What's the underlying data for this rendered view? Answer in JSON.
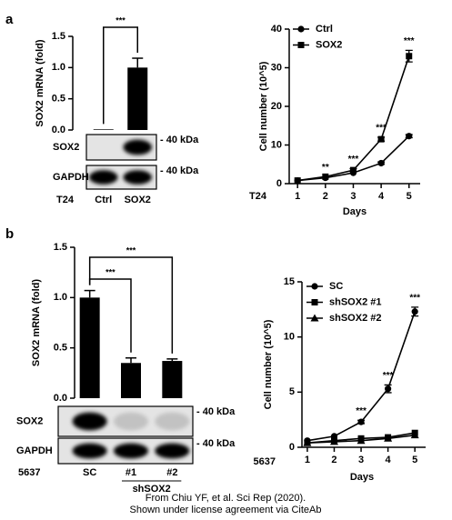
{
  "panels": [
    "a",
    "b"
  ],
  "chart_data": [
    {
      "type": "bar",
      "y_label": "SOX2 mRNA (fold)",
      "cell_line": "T24",
      "categories": [
        "Ctrl",
        "SOX2"
      ],
      "values": [
        0.01,
        1.0
      ],
      "errors": [
        null,
        0.15
      ],
      "color": "#000000",
      "ylim": [
        0,
        1.5
      ],
      "yticks": [
        {
          "value": 0,
          "label": "0.0"
        },
        0.5,
        {
          "value": 1,
          "label": "1.0"
        },
        1.5
      ],
      "annotations": [
        {
          "text": "***",
          "between": [
            "Ctrl",
            "SOX2"
          ]
        }
      ]
    },
    {
      "type": "line",
      "y_label": "Cell number (10^5)",
      "x_label": "Days",
      "cell_line": "T24",
      "x": [
        1,
        2,
        3,
        4,
        5
      ],
      "xlim": [
        0.7,
        5.4
      ],
      "xticks": [
        1,
        2,
        3,
        4,
        5
      ],
      "ylim": [
        0,
        40
      ],
      "yticks": [
        0,
        10,
        20,
        30,
        40
      ],
      "legend": "upper-left",
      "series": [
        {
          "name": "Ctrl",
          "color": "#000000",
          "marker": "circle",
          "values": [
            0.8,
            1.5,
            2.8,
            5.3,
            12.3
          ],
          "errors": [
            null,
            null,
            null,
            0.3,
            0.4
          ]
        },
        {
          "name": "SOX2",
          "color": "#000000",
          "marker": "square",
          "values": [
            0.8,
            1.8,
            3.5,
            11.5,
            33
          ],
          "errors": [
            null,
            null,
            0.4,
            0.5,
            1.5
          ]
        }
      ],
      "annotations": [
        {
          "text": "**",
          "x": 2
        },
        {
          "text": "***",
          "x": 3
        },
        {
          "text": "***",
          "x": 4
        },
        {
          "text": "***",
          "x": 5
        }
      ]
    },
    {
      "type": "bar",
      "y_label": "SOX2 mRNA (fold)",
      "cell_line": "5637",
      "group_label": "shSOX2",
      "categories": [
        "SC",
        "#1",
        "#2"
      ],
      "values": [
        1.0,
        0.35,
        0.37
      ],
      "errors": [
        0.07,
        0.05,
        0.02
      ],
      "color": "#000000",
      "ylim": [
        0,
        1.5
      ],
      "yticks": [
        {
          "value": 0,
          "label": "0.0"
        },
        0.5,
        {
          "value": 1,
          "label": "1.0"
        },
        1.5
      ],
      "annotations": [
        {
          "text": "***",
          "between": [
            "SC",
            "#1"
          ]
        },
        {
          "text": "***",
          "between": [
            "SC",
            "#2"
          ]
        }
      ]
    },
    {
      "type": "line",
      "y_label": "Cell number (10^5)",
      "x_label": "Days",
      "cell_line": "5637",
      "x": [
        1,
        2,
        3,
        4,
        5
      ],
      "xlim": [
        0.8,
        5.4
      ],
      "xticks": [
        1,
        2,
        3,
        4,
        5
      ],
      "ylim": [
        0,
        15
      ],
      "yticks": [
        0,
        5,
        10,
        15
      ],
      "legend": "upper-left",
      "series": [
        {
          "name": "SC",
          "color": "#000000",
          "marker": "circle",
          "values": [
            0.6,
            1.0,
            2.3,
            5.3,
            12.3
          ],
          "errors": [
            null,
            null,
            0.15,
            0.35,
            0.4
          ]
        },
        {
          "name": "shSOX2 #1",
          "color": "#000000",
          "marker": "square",
          "values": [
            0.4,
            0.6,
            0.8,
            0.9,
            1.3
          ],
          "errors": [
            null,
            null,
            null,
            null,
            null
          ]
        },
        {
          "name": "shSOX2 #2",
          "color": "#000000",
          "marker": "triangle",
          "values": [
            0.4,
            0.5,
            0.6,
            0.8,
            1.1
          ],
          "errors": [
            null,
            null,
            null,
            null,
            null
          ]
        }
      ],
      "annotations": [
        {
          "text": "***",
          "x": 3
        },
        {
          "text": "***",
          "x": 4
        },
        {
          "text": "***",
          "x": 5
        }
      ]
    }
  ],
  "blots": [
    {
      "rows": [
        {
          "label": "SOX2",
          "size": "- 40 kDa"
        },
        {
          "label": "GAPDH",
          "size": "- 40 kDa"
        }
      ]
    },
    {
      "rows": [
        {
          "label": "SOX2",
          "size": "- 40 kDa"
        },
        {
          "label": "GAPDH",
          "size": "- 40 kDa"
        }
      ]
    }
  ],
  "footer": {
    "lines": [
      "From Chiu YF, et al. Sci Rep (2020).",
      "Shown under license agreement via CiteAb"
    ]
  }
}
